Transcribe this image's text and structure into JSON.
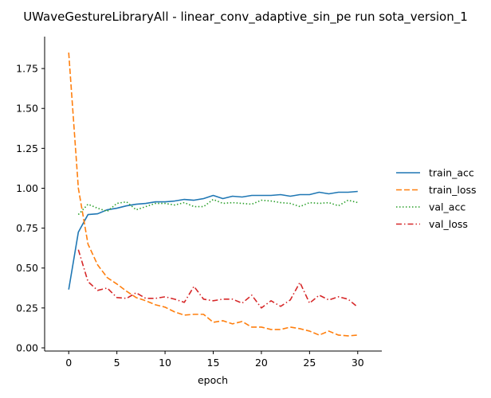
{
  "chart_data": {
    "type": "line",
    "title": "UWaveGestureLibraryAll - linear_conv_adaptive_sin_pe run sota_version_1",
    "xlabel": "epoch",
    "ylabel": "",
    "xlim": [
      -2.5,
      32.5
    ],
    "ylim": [
      -0.02,
      1.95
    ],
    "xticks": [
      0,
      5,
      10,
      15,
      20,
      25,
      30
    ],
    "yticks": [
      0.0,
      0.25,
      0.5,
      0.75,
      1.0,
      1.25,
      1.5,
      1.75
    ],
    "ytick_labels": [
      "0.00",
      "0.25",
      "0.50",
      "0.75",
      "1.00",
      "1.25",
      "1.50",
      "1.75"
    ],
    "grid": false,
    "legend_position": "right",
    "series": [
      {
        "name": "train_acc",
        "color": "#1f77b4",
        "dash": "solid",
        "x": [
          0,
          1,
          2,
          3,
          4,
          5,
          6,
          7,
          8,
          9,
          10,
          11,
          12,
          13,
          14,
          15,
          16,
          17,
          18,
          19,
          20,
          21,
          22,
          23,
          24,
          25,
          26,
          27,
          28,
          29,
          30
        ],
        "values": [
          0.365,
          0.725,
          0.835,
          0.84,
          0.865,
          0.875,
          0.89,
          0.9,
          0.905,
          0.915,
          0.915,
          0.92,
          0.93,
          0.925,
          0.935,
          0.955,
          0.935,
          0.95,
          0.945,
          0.955,
          0.955,
          0.955,
          0.96,
          0.95,
          0.96,
          0.96,
          0.975,
          0.965,
          0.975,
          0.975,
          0.98
        ]
      },
      {
        "name": "train_loss",
        "color": "#ff7f0e",
        "dash": "dashed",
        "x": [
          0,
          1,
          2,
          3,
          4,
          5,
          6,
          7,
          8,
          9,
          10,
          11,
          12,
          13,
          14,
          15,
          16,
          17,
          18,
          19,
          20,
          21,
          22,
          23,
          24,
          25,
          26,
          27,
          28,
          29,
          30
        ],
        "values": [
          1.85,
          1.0,
          0.65,
          0.52,
          0.44,
          0.4,
          0.355,
          0.315,
          0.295,
          0.27,
          0.255,
          0.225,
          0.205,
          0.21,
          0.21,
          0.16,
          0.17,
          0.15,
          0.165,
          0.13,
          0.13,
          0.115,
          0.115,
          0.13,
          0.12,
          0.105,
          0.08,
          0.105,
          0.08,
          0.075,
          0.08
        ]
      },
      {
        "name": "val_acc",
        "color": "#2ca02c",
        "dash": "dotted",
        "x": [
          1,
          2,
          3,
          4,
          5,
          6,
          7,
          8,
          9,
          10,
          11,
          12,
          13,
          14,
          15,
          16,
          17,
          18,
          19,
          20,
          21,
          22,
          23,
          24,
          25,
          26,
          27,
          28,
          29,
          30
        ],
        "values": [
          0.835,
          0.9,
          0.875,
          0.855,
          0.905,
          0.915,
          0.865,
          0.885,
          0.905,
          0.905,
          0.895,
          0.91,
          0.885,
          0.885,
          0.93,
          0.905,
          0.91,
          0.905,
          0.9,
          0.925,
          0.92,
          0.91,
          0.905,
          0.885,
          0.91,
          0.905,
          0.91,
          0.89,
          0.925,
          0.91
        ]
      },
      {
        "name": "val_loss",
        "color": "#d62728",
        "dash": "dashdot",
        "x": [
          1,
          2,
          3,
          4,
          5,
          6,
          7,
          8,
          9,
          10,
          11,
          12,
          13,
          14,
          15,
          16,
          17,
          18,
          19,
          20,
          21,
          22,
          23,
          24,
          25,
          26,
          27,
          28,
          29,
          30
        ],
        "values": [
          0.615,
          0.415,
          0.36,
          0.375,
          0.315,
          0.31,
          0.345,
          0.31,
          0.31,
          0.32,
          0.305,
          0.285,
          0.385,
          0.305,
          0.295,
          0.305,
          0.305,
          0.28,
          0.33,
          0.25,
          0.295,
          0.26,
          0.3,
          0.41,
          0.28,
          0.33,
          0.3,
          0.32,
          0.305,
          0.255
        ]
      }
    ]
  }
}
